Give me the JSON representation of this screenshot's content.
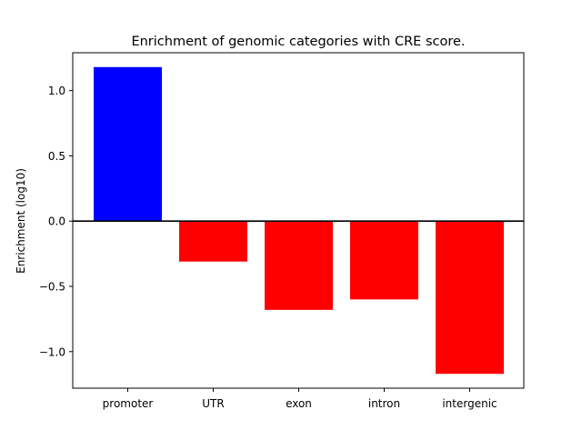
{
  "chart_data": {
    "type": "bar",
    "title": "Enrichment of genomic categories with CRE score.",
    "xlabel": "",
    "ylabel": "Enrichment (log10)",
    "categories": [
      "promoter",
      "UTR",
      "exon",
      "intron",
      "intergenic"
    ],
    "values": [
      1.18,
      -0.31,
      -0.68,
      -0.6,
      -1.17
    ],
    "colors": [
      "#0000ff",
      "#ff0000",
      "#ff0000",
      "#ff0000",
      "#ff0000"
    ],
    "ylim": [
      -1.28,
      1.29
    ],
    "yticks": [
      {
        "value": 1.0,
        "label": "1.0"
      },
      {
        "value": 0.5,
        "label": "0.5"
      },
      {
        "value": 0.0,
        "label": "0.0"
      },
      {
        "value": -0.5,
        "label": "−0.5"
      },
      {
        "value": -1.0,
        "label": "−1.0"
      }
    ],
    "zero_line": true,
    "grid": false
  }
}
